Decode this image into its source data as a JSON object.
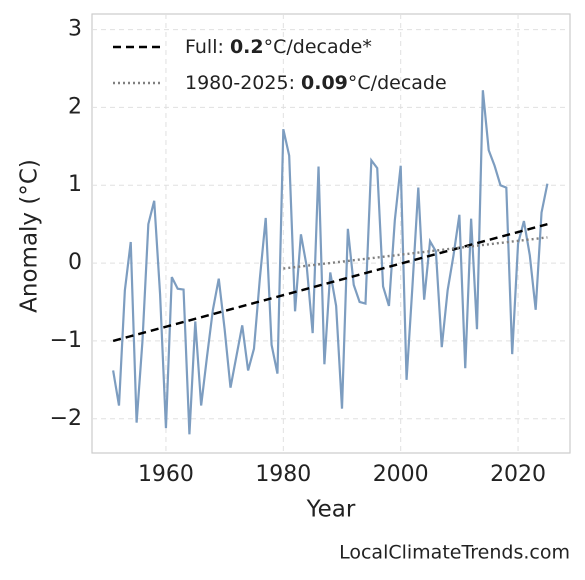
{
  "chart_data": {
    "type": "line",
    "x_label": "Year",
    "y_label": "Anomaly (°C)",
    "footer": "LocalClimateTrends.com",
    "xlim": [
      1947.4,
      2028.85
    ],
    "ylim": [
      -2.44,
      3.2
    ],
    "xticks": [
      1960,
      1980,
      2000,
      2020
    ],
    "yticks": [
      {
        "value": -2,
        "label": "−2"
      },
      {
        "value": -1,
        "label": "−1"
      },
      0,
      1,
      2,
      3
    ],
    "grid": true,
    "legend": "upper left",
    "series": [
      {
        "color": "#7d9dc0",
        "style": "solid",
        "x": [
          1951,
          1952,
          1953,
          1954,
          1955,
          1956,
          1957,
          1958,
          1959,
          1960,
          1961,
          1962,
          1963,
          1964,
          1965,
          1966,
          1967,
          1968,
          1969,
          1970,
          1971,
          1972,
          1973,
          1974,
          1975,
          1976,
          1977,
          1978,
          1979,
          1980,
          1981,
          1982,
          1983,
          1984,
          1985,
          1986,
          1987,
          1988,
          1989,
          1990,
          1991,
          1992,
          1993,
          1994,
          1995,
          1996,
          1997,
          1998,
          1999,
          2000,
          2001,
          2002,
          2003,
          2004,
          2005,
          2006,
          2007,
          2008,
          2009,
          2010,
          2011,
          2012,
          2013,
          2014,
          2015,
          2016,
          2017,
          2018,
          2019,
          2020,
          2021,
          2022,
          2023,
          2024,
          2025
        ],
        "values": [
          -1.38,
          -1.83,
          -0.35,
          0.27,
          -2.05,
          -1.0,
          0.5,
          0.8,
          -0.4,
          -2.12,
          -0.18,
          -0.33,
          -0.34,
          -2.2,
          -0.75,
          -1.83,
          -1.2,
          -0.6,
          -0.2,
          -0.85,
          -1.6,
          -1.2,
          -0.8,
          -1.38,
          -1.1,
          -0.2,
          0.58,
          -1.05,
          -1.42,
          1.72,
          1.38,
          -0.62,
          0.37,
          -0.05,
          -0.9,
          1.24,
          -1.3,
          -0.12,
          -0.55,
          -1.87,
          0.44,
          -0.28,
          -0.5,
          -0.52,
          1.32,
          1.22,
          -0.3,
          -0.55,
          0.55,
          1.25,
          -1.5,
          -0.3,
          0.97,
          -0.47,
          0.28,
          0.15,
          -1.08,
          -0.35,
          0.1,
          0.62,
          -1.35,
          0.57,
          -0.85,
          2.22,
          1.45,
          1.25,
          1.0,
          0.97,
          -1.17,
          0.25,
          0.54,
          0.1,
          -0.6,
          0.65,
          1.02
        ]
      },
      {
        "name_parts": [
          "Full: ",
          "0.2",
          "°C/decade*"
        ],
        "color": "#000000",
        "style": "dashed",
        "x": [
          1951,
          2025
        ],
        "values": [
          -1.0,
          0.5
        ]
      },
      {
        "name_parts": [
          "1980-2025: ",
          "0.09",
          "°C/decade"
        ],
        "color": "#808080",
        "style": "dotted",
        "x": [
          1980,
          2025
        ],
        "values": [
          -0.07,
          0.33
        ]
      }
    ]
  }
}
